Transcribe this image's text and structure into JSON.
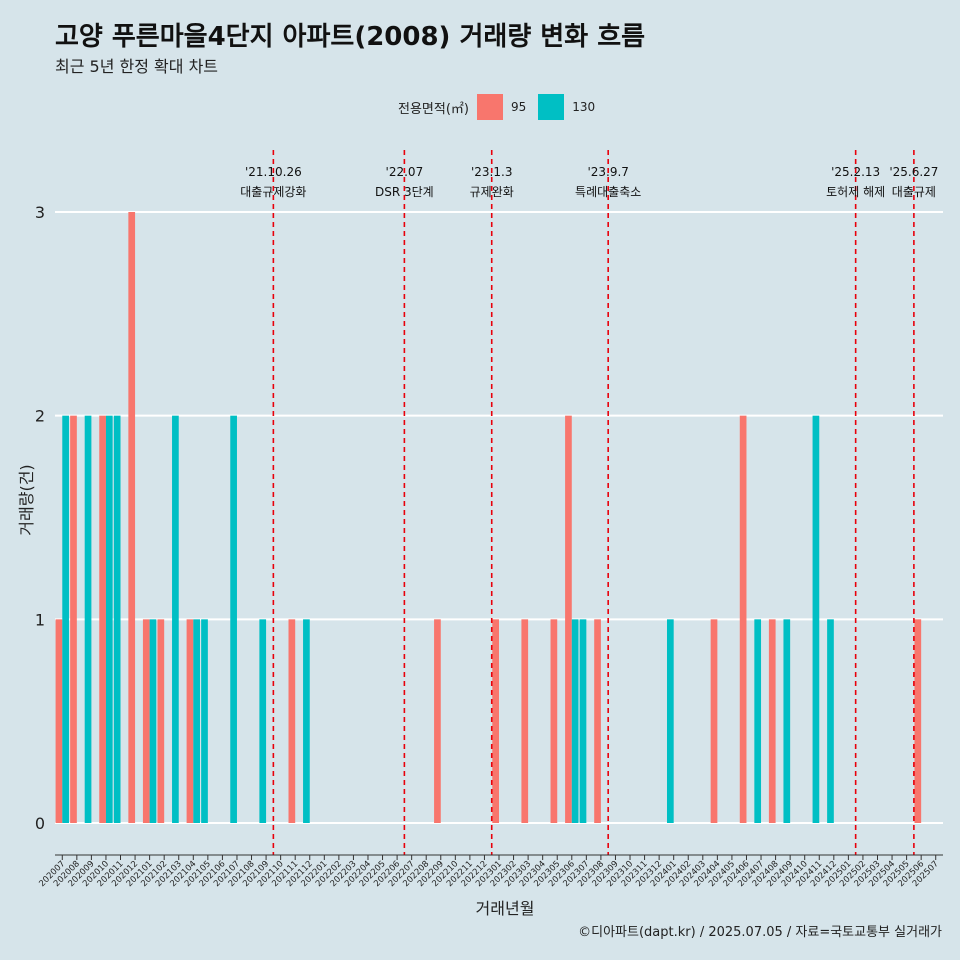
{
  "title": "고양 푸른마을4단지 아파트(2008) 거래량 변화 흐름",
  "subtitle": "최근 5년 한정 확대 차트",
  "caption": "©디아파트(dapt.kr) / 2025.07.05 / 자료=국토교통부 실거래가",
  "legend": {
    "title": "전용면적(㎡)",
    "items": [
      {
        "label": "95",
        "color": "#f8766d"
      },
      {
        "label": "130",
        "color": "#00bfc4"
      }
    ]
  },
  "chart_data": {
    "type": "bar",
    "xlabel": "거래년월",
    "ylabel": "거래량(건)",
    "ylim": [
      0,
      3
    ],
    "yticks": [
      0,
      1,
      2,
      3
    ],
    "grid": true,
    "legend_position": "top",
    "categories": [
      "202007",
      "202008",
      "202009",
      "202010",
      "202011",
      "202012",
      "202101",
      "202102",
      "202103",
      "202104",
      "202105",
      "202106",
      "202107",
      "202108",
      "202109",
      "202110",
      "202111",
      "202112",
      "202201",
      "202202",
      "202203",
      "202204",
      "202205",
      "202206",
      "202207",
      "202208",
      "202209",
      "202210",
      "202211",
      "202212",
      "202301",
      "202302",
      "202303",
      "202304",
      "202305",
      "202306",
      "202307",
      "202308",
      "202309",
      "202310",
      "202311",
      "202312",
      "202401",
      "202402",
      "202403",
      "202404",
      "202405",
      "202406",
      "202407",
      "202408",
      "202409",
      "202410",
      "202411",
      "202412",
      "202501",
      "202502",
      "202503",
      "202504",
      "202505",
      "202506",
      "202507"
    ],
    "series": [
      {
        "name": "95",
        "color": "#f8766d",
        "values": [
          1,
          2,
          0,
          2,
          0,
          3,
          1,
          1,
          0,
          1,
          0,
          0,
          0,
          0,
          0,
          0,
          1,
          0,
          0,
          0,
          0,
          0,
          0,
          0,
          0,
          0,
          1,
          0,
          0,
          0,
          1,
          0,
          1,
          0,
          1,
          2,
          0,
          1,
          0,
          0,
          0,
          0,
          0,
          0,
          0,
          1,
          0,
          2,
          0,
          1,
          0,
          0,
          0,
          0,
          0,
          0,
          0,
          0,
          0,
          1,
          0
        ]
      },
      {
        "name": "130",
        "color": "#00bfc4",
        "values": [
          2,
          0,
          2,
          2,
          2,
          0,
          1,
          0,
          2,
          1,
          1,
          0,
          2,
          0,
          1,
          0,
          0,
          1,
          0,
          0,
          0,
          0,
          0,
          0,
          0,
          0,
          0,
          0,
          0,
          0,
          0,
          0,
          0,
          0,
          0,
          1,
          1,
          0,
          0,
          0,
          0,
          0,
          1,
          0,
          0,
          0,
          0,
          0,
          1,
          0,
          1,
          0,
          2,
          1,
          0,
          0,
          0,
          0,
          0,
          0,
          0
        ]
      }
    ],
    "annotations": [
      {
        "date": "'21.10.26",
        "text": "대출규제강화",
        "category": "202110"
      },
      {
        "date": "'22.07",
        "text": "DSR 3단계",
        "category": "202207"
      },
      {
        "date": "'23.1.3",
        "text": "규제완화",
        "category": "202301"
      },
      {
        "date": "'23.9.7",
        "text": "특례대출축소",
        "category": "202309"
      },
      {
        "date": "'25.2.13",
        "text": "토허제 해제",
        "category": "202502"
      },
      {
        "date": "'25.6.27",
        "text": "대출규제",
        "category": "202506"
      }
    ]
  }
}
